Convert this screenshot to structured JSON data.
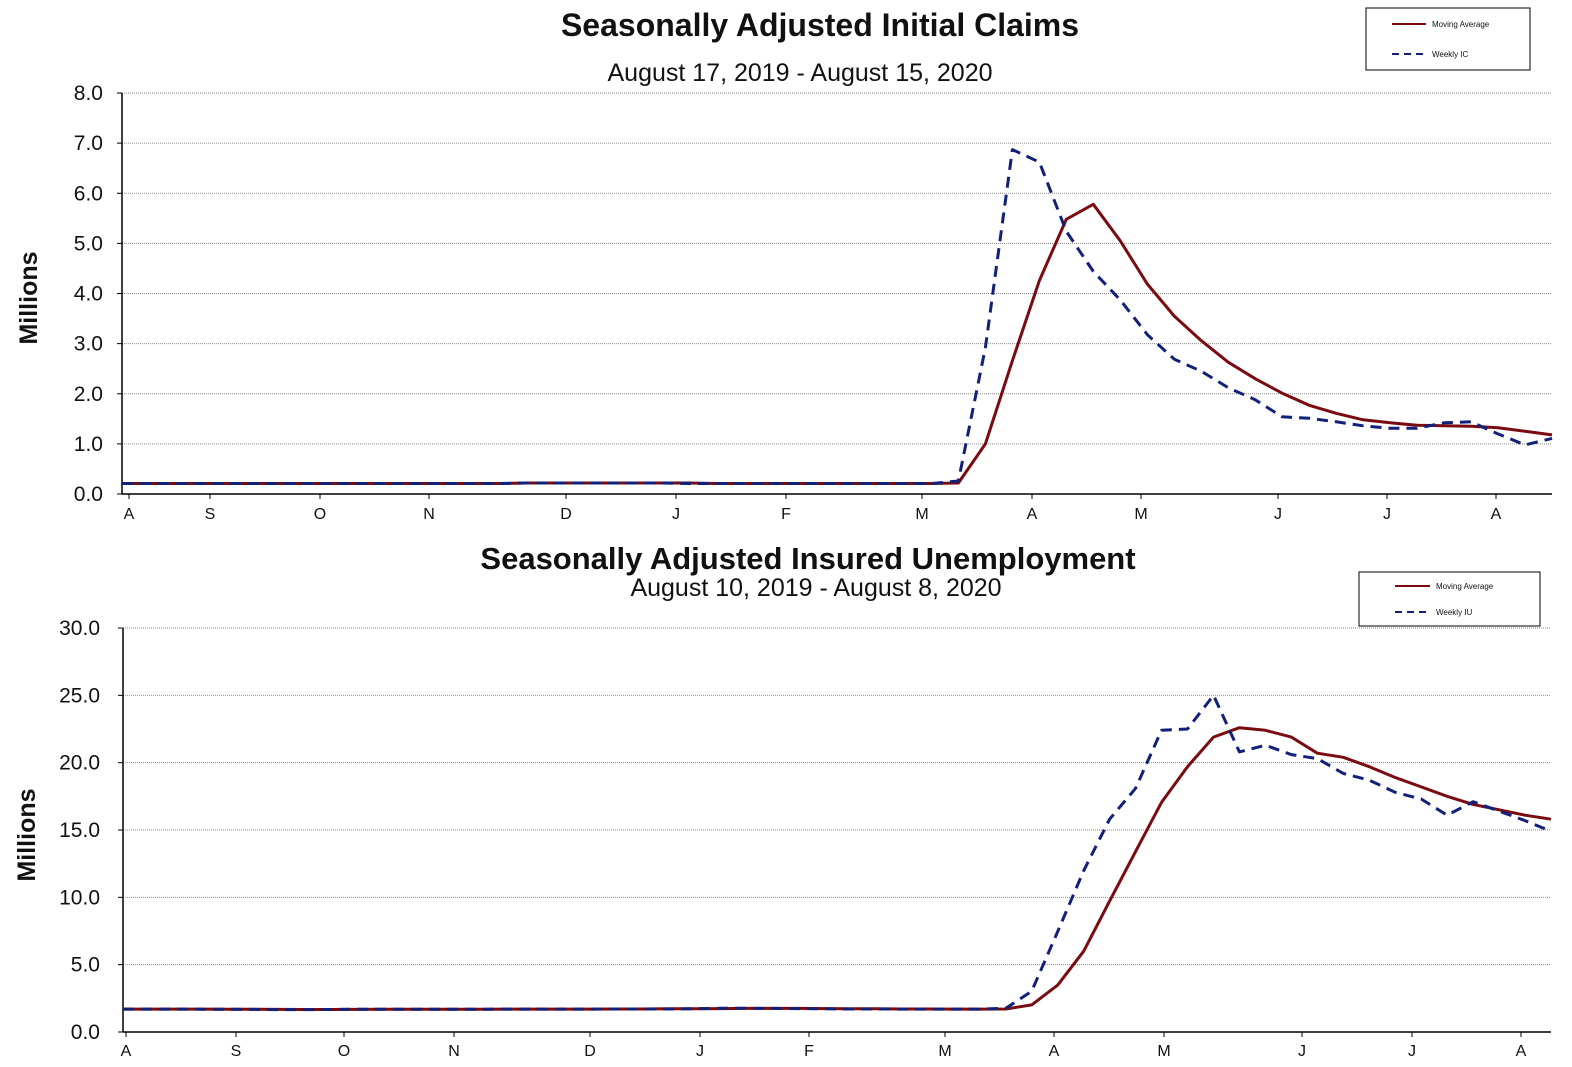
{
  "colors": {
    "moving_average": "#7a0b10",
    "weekly": "#12207a"
  },
  "chart_data": [
    {
      "type": "line",
      "title": "Seasonally Adjusted Initial Claims",
      "subtitle": "August 17, 2019 - August 15, 2020",
      "ylabel": "Millions",
      "ylim": [
        0,
        8
      ],
      "yticks": [
        "0.0",
        "1.0",
        "2.0",
        "3.0",
        "4.0",
        "5.0",
        "6.0",
        "7.0",
        "8.0"
      ],
      "month_ticks": [
        "A",
        "S",
        "O",
        "N",
        "D",
        "J",
        "F",
        "M",
        "A",
        "M",
        "J",
        "J",
        "A"
      ],
      "grid": true,
      "legend_position": "top-right",
      "series": [
        {
          "name": "Moving Average",
          "style": "solid",
          "values": [
            0.21,
            0.21,
            0.21,
            0.21,
            0.21,
            0.21,
            0.21,
            0.21,
            0.21,
            0.21,
            0.21,
            0.21,
            0.21,
            0.21,
            0.21,
            0.22,
            0.22,
            0.22,
            0.22,
            0.22,
            0.22,
            0.22,
            0.21,
            0.21,
            0.21,
            0.21,
            0.21,
            0.21,
            0.21,
            0.21,
            0.21,
            0.22,
            1.0,
            2.66,
            4.26,
            5.48,
            5.78,
            5.05,
            4.19,
            3.55,
            3.06,
            2.63,
            2.3,
            2.01,
            1.77,
            1.61,
            1.48,
            1.42,
            1.37,
            1.36,
            1.35,
            1.32,
            1.25,
            1.18
          ]
        },
        {
          "name": "Weekly IC",
          "style": "dashed",
          "values": [
            0.21,
            0.21,
            0.21,
            0.21,
            0.21,
            0.21,
            0.21,
            0.21,
            0.21,
            0.21,
            0.21,
            0.21,
            0.21,
            0.21,
            0.21,
            0.22,
            0.22,
            0.22,
            0.22,
            0.22,
            0.22,
            0.21,
            0.21,
            0.21,
            0.21,
            0.21,
            0.21,
            0.21,
            0.21,
            0.21,
            0.21,
            0.26,
            2.92,
            6.87,
            6.62,
            5.24,
            4.44,
            3.87,
            3.18,
            2.69,
            2.45,
            2.12,
            1.88,
            1.54,
            1.51,
            1.44,
            1.36,
            1.31,
            1.31,
            1.42,
            1.44,
            1.2,
            0.98,
            1.11
          ]
        }
      ]
    },
    {
      "type": "line",
      "title": "Seasonally Adjusted Insured Unemployment",
      "subtitle": "August 10, 2019 - August 8, 2020",
      "ylabel": "Millions",
      "ylim": [
        0,
        30
      ],
      "yticks": [
        "0.0",
        "5.0",
        "10.0",
        "15.0",
        "20.0",
        "25.0",
        "30.0"
      ],
      "month_ticks": [
        "A",
        "S",
        "O",
        "N",
        "D",
        "J",
        "F",
        "M",
        "A",
        "M",
        "J",
        "J",
        "A"
      ],
      "grid": true,
      "legend_position": "top-right",
      "series": [
        {
          "name": "Moving Average",
          "style": "solid",
          "values": [
            1.7,
            1.7,
            1.7,
            1.7,
            1.69,
            1.69,
            1.68,
            1.67,
            1.67,
            1.68,
            1.69,
            1.69,
            1.69,
            1.69,
            1.69,
            1.7,
            1.7,
            1.7,
            1.7,
            1.71,
            1.71,
            1.72,
            1.72,
            1.74,
            1.75,
            1.75,
            1.75,
            1.74,
            1.73,
            1.72,
            1.71,
            1.71,
            1.7,
            1.7,
            1.71,
            2.01,
            3.48,
            6.0,
            9.72,
            13.4,
            17.05,
            19.7,
            21.9,
            22.6,
            22.4,
            21.9,
            20.7,
            20.4,
            19.7,
            18.9,
            18.2,
            17.5,
            16.9,
            16.5,
            16.1,
            15.8
          ]
        },
        {
          "name": "Weekly IU",
          "style": "dashed",
          "values": [
            1.7,
            1.7,
            1.7,
            1.69,
            1.69,
            1.68,
            1.66,
            1.66,
            1.67,
            1.69,
            1.69,
            1.69,
            1.69,
            1.69,
            1.69,
            1.7,
            1.7,
            1.7,
            1.7,
            1.71,
            1.71,
            1.71,
            1.73,
            1.76,
            1.76,
            1.75,
            1.74,
            1.72,
            1.71,
            1.71,
            1.7,
            1.7,
            1.7,
            1.7,
            1.76,
            3.03,
            7.46,
            11.98,
            15.8,
            18.1,
            22.4,
            22.5,
            25.0,
            20.8,
            21.3,
            20.6,
            20.3,
            19.2,
            18.7,
            17.8,
            17.3,
            16.1,
            17.1,
            16.4,
            15.7,
            14.9
          ]
        }
      ]
    }
  ]
}
